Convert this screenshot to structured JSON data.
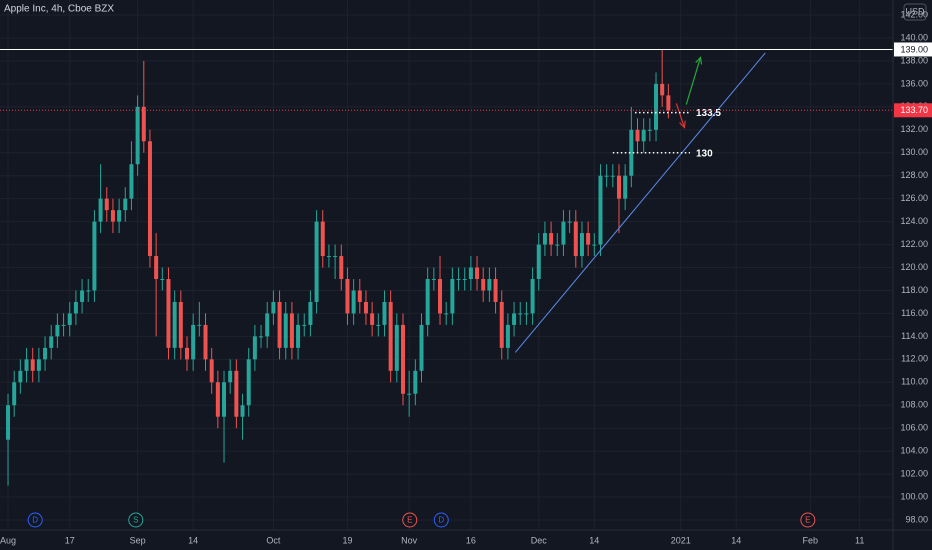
{
  "chart_data": {
    "type": "candlestick",
    "title": "Apple Inc, 4h, Cboe BZX",
    "currency": "USD",
    "xlim": [
      -1.3,
      143.4
    ],
    "ylim": [
      97.13,
      143.31
    ],
    "xticks": [
      {
        "value": 0,
        "label": "Aug"
      },
      {
        "value": 10,
        "label": "17"
      },
      {
        "value": 21,
        "label": "Sep"
      },
      {
        "value": 30,
        "label": "14"
      },
      {
        "value": 43,
        "label": "Oct"
      },
      {
        "value": 55,
        "label": "19"
      },
      {
        "value": 65,
        "label": "Nov"
      },
      {
        "value": 75,
        "label": "16"
      },
      {
        "value": 86,
        "label": "Dec"
      },
      {
        "value": 95,
        "label": "14"
      },
      {
        "value": 109,
        "label": "2021"
      },
      {
        "value": 118,
        "label": "14"
      },
      {
        "value": 130,
        "label": "Feb"
      },
      {
        "value": 138,
        "label": "11"
      }
    ],
    "yticks": [
      {
        "value": 98,
        "label": "98.00"
      },
      {
        "value": 100,
        "label": "100.00"
      },
      {
        "value": 102,
        "label": "102.00"
      },
      {
        "value": 104,
        "label": "104.00"
      },
      {
        "value": 106,
        "label": "106.00"
      },
      {
        "value": 108,
        "label": "108.00"
      },
      {
        "value": 110,
        "label": "110.00"
      },
      {
        "value": 112,
        "label": "112.00"
      },
      {
        "value": 114,
        "label": "114.00"
      },
      {
        "value": 116,
        "label": "116.00"
      },
      {
        "value": 118,
        "label": "118.00"
      },
      {
        "value": 120,
        "label": "120.00"
      },
      {
        "value": 122,
        "label": "122.00"
      },
      {
        "value": 124,
        "label": "124.00"
      },
      {
        "value": 126,
        "label": "126.00"
      },
      {
        "value": 128,
        "label": "128.00"
      },
      {
        "value": 130,
        "label": "130.00"
      },
      {
        "value": 132,
        "label": "132.00"
      },
      {
        "value": 134,
        "label": "134.00"
      },
      {
        "value": 136,
        "label": "136.00"
      },
      {
        "value": 138,
        "label": "138.00"
      },
      {
        "value": 140,
        "label": "140.00"
      },
      {
        "value": 142,
        "label": "142.00"
      }
    ],
    "grid": true,
    "up_color": "#26a69a",
    "down_color": "#ef5350",
    "x": [
      0,
      1,
      2,
      3,
      4,
      5,
      6,
      7,
      8,
      9,
      10,
      11,
      12,
      13,
      14,
      15,
      16,
      17,
      18,
      19,
      20,
      21,
      22,
      23,
      24,
      25,
      26,
      27,
      28,
      29,
      30,
      31,
      32,
      33,
      34,
      35,
      36,
      37,
      38,
      39,
      40,
      41,
      42,
      43,
      44,
      45,
      46,
      47,
      48,
      49,
      50,
      51,
      52,
      53,
      54,
      55,
      56,
      57,
      58,
      59,
      60,
      61,
      62,
      63,
      64,
      65,
      66,
      67,
      68,
      69,
      70,
      71,
      72,
      73,
      74,
      75,
      76,
      77,
      78,
      79,
      80,
      81,
      82,
      83,
      84,
      85,
      86,
      87,
      88,
      89,
      90,
      91,
      92,
      93,
      94,
      95,
      96,
      97,
      98,
      99,
      100,
      101,
      102,
      103,
      104,
      105,
      106,
      107
    ],
    "open": [
      105,
      108,
      110,
      111,
      112,
      111,
      112,
      113,
      114,
      115,
      115,
      116,
      117,
      118,
      118,
      124,
      126,
      125,
      124,
      125,
      126,
      129,
      134,
      131,
      121,
      119,
      119,
      113,
      117,
      113,
      112,
      115,
      115,
      112,
      110,
      107,
      110,
      111,
      107,
      108,
      112,
      114,
      114,
      116,
      117,
      113,
      116,
      113,
      115,
      115,
      117,
      124,
      121,
      121,
      121,
      119,
      116,
      118,
      117,
      116,
      115,
      115,
      117,
      111,
      115,
      109,
      109,
      111,
      115,
      119,
      119,
      116,
      116,
      119,
      119,
      119,
      120,
      119,
      118,
      119,
      117,
      113,
      115,
      116,
      116,
      116,
      119,
      122,
      123,
      122,
      122,
      124,
      124,
      121,
      123,
      122,
      122,
      128,
      128,
      128,
      126,
      128,
      132,
      131,
      132,
      132,
      136,
      135
    ],
    "high": [
      109,
      111,
      112,
      113,
      113,
      113,
      114,
      115,
      116,
      116,
      117,
      118,
      119,
      119,
      125,
      129,
      127,
      126,
      126,
      127,
      131,
      135,
      138,
      132,
      123,
      120,
      120,
      118,
      118,
      114,
      116,
      117,
      116,
      113,
      111,
      111,
      112,
      112,
      109,
      113,
      115,
      115,
      117,
      118,
      118,
      117,
      117,
      116,
      116,
      118,
      125,
      125,
      122,
      122,
      122,
      120,
      119,
      119,
      118,
      117,
      116,
      118,
      118,
      116,
      116,
      111,
      112,
      116,
      120,
      120,
      121,
      117,
      120,
      120,
      120,
      121,
      121,
      120,
      120,
      120,
      118,
      116,
      117,
      117,
      117,
      120,
      123,
      124,
      124,
      123,
      125,
      125,
      125,
      124,
      124,
      123,
      129,
      129,
      129,
      129,
      129,
      134,
      133,
      133,
      133,
      137,
      139,
      136
    ],
    "low": [
      101,
      107,
      109,
      110,
      110,
      110,
      111,
      112,
      113,
      114,
      114,
      115,
      116,
      117,
      117,
      123,
      124,
      123,
      123,
      124,
      125,
      128,
      130,
      120,
      114,
      118,
      112,
      112,
      112,
      111,
      111,
      114,
      111,
      109,
      106,
      103,
      109,
      106,
      105,
      107,
      111,
      113,
      113,
      115,
      112,
      112,
      112,
      112,
      114,
      114,
      116,
      120,
      120,
      119,
      118,
      115,
      115,
      116,
      115,
      114,
      114,
      114,
      110,
      110,
      108,
      107,
      108,
      110,
      114,
      118,
      115,
      115,
      115,
      118,
      118,
      118,
      118,
      117,
      117,
      116,
      112,
      112,
      114,
      115,
      115,
      115,
      118,
      121,
      121,
      121,
      121,
      123,
      120,
      120,
      121,
      121,
      121,
      127,
      127,
      123,
      125,
      127,
      130,
      130,
      131,
      131,
      134,
      133
    ],
    "close": [
      108,
      110,
      111,
      112,
      111,
      112,
      113,
      114,
      115,
      115,
      116,
      117,
      118,
      118,
      124,
      126,
      125,
      124,
      125,
      126,
      129,
      134,
      131,
      121,
      119,
      119,
      113,
      117,
      113,
      112,
      115,
      115,
      112,
      110,
      107,
      110,
      111,
      107,
      108,
      112,
      114,
      114,
      116,
      117,
      113,
      116,
      113,
      115,
      115,
      117,
      124,
      121,
      121,
      121,
      119,
      116,
      118,
      117,
      116,
      115,
      115,
      117,
      111,
      115,
      109,
      109,
      111,
      115,
      119,
      119,
      116,
      116,
      119,
      119,
      119,
      120,
      119,
      118,
      119,
      117,
      113,
      115,
      116,
      116,
      116,
      119,
      122,
      123,
      122,
      122,
      124,
      124,
      121,
      123,
      122,
      122,
      128,
      128,
      128,
      126,
      128,
      132,
      131,
      132,
      132,
      136,
      135,
      133.7
    ],
    "price_levels": [
      {
        "value": 139,
        "label": "139.00",
        "color": "#ffffff",
        "text_color": "#131722"
      },
      {
        "value": 133.7,
        "label": "133.70",
        "color": "#f23645",
        "text_color": "#ffffff"
      }
    ],
    "drawn_levels": [
      {
        "value": 133.5,
        "label": "133.5",
        "x": [
          101.6,
          110.5
        ]
      },
      {
        "value": 130,
        "label": "130",
        "x": [
          98,
          110.5
        ]
      }
    ],
    "trendline": {
      "x": [
        82.2,
        122.7
      ],
      "y": [
        112.6,
        138.7
      ],
      "color": "#5b8def"
    },
    "arrows": [
      {
        "x": [
          109.9,
          112.2
        ],
        "y": [
          134.2,
          138.3
        ],
        "color": "#22ab3a"
      },
      {
        "x": [
          108.3,
          109.6
        ],
        "y": [
          134.3,
          132.2
        ],
        "color": "#e03535"
      }
    ],
    "events": [
      {
        "x": 4.4,
        "label": "D",
        "color": "#2962ff"
      },
      {
        "x": 20.7,
        "label": "S",
        "color": "#26a69a"
      },
      {
        "x": 65.1,
        "label": "E",
        "color": "#ef5350"
      },
      {
        "x": 70.2,
        "label": "D",
        "color": "#2962ff"
      },
      {
        "x": 129.6,
        "label": "E",
        "color": "#ef5350"
      }
    ]
  }
}
